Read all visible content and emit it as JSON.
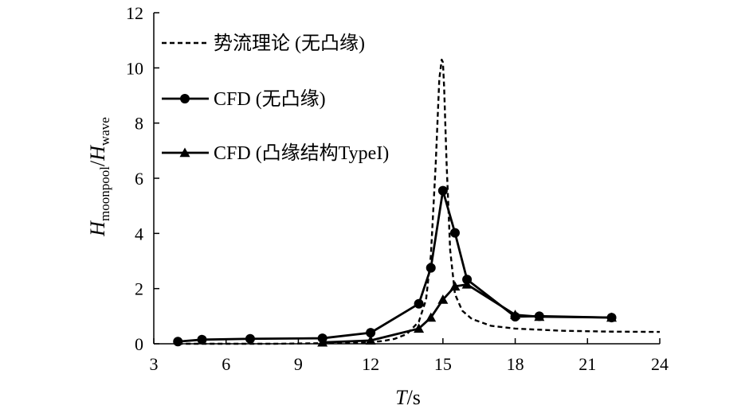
{
  "chart_data": {
    "type": "line",
    "title": "",
    "xlabel": {
      "italic": "T",
      "rest": "/s"
    },
    "ylabel": {
      "h1": "H",
      "sub1": "moonpool",
      "sep": "/",
      "h2": "H",
      "sub2": "wave"
    },
    "xlim": [
      3,
      24
    ],
    "ylim": [
      0,
      12
    ],
    "x_ticks": [
      3,
      6,
      9,
      12,
      15,
      18,
      21,
      24
    ],
    "y_ticks": [
      0,
      2,
      4,
      6,
      8,
      10,
      12
    ],
    "grid": false,
    "legend_placement": "top-left",
    "series": [
      {
        "name": "势流理论 (无凸缘)",
        "style": "dashed",
        "marker": "none",
        "color": "#000000",
        "x": [
          4,
          6,
          8,
          10,
          11,
          12,
          12.5,
          13,
          13.5,
          14,
          14.3,
          14.5,
          14.7,
          14.85,
          14.95,
          15.0,
          15.05,
          15.15,
          15.3,
          15.5,
          15.8,
          16.2,
          17,
          18,
          20,
          22,
          24
        ],
        "y": [
          0.0,
          0.0,
          0.0,
          0.02,
          0.03,
          0.06,
          0.1,
          0.18,
          0.35,
          0.8,
          1.6,
          3.2,
          6.5,
          9.6,
          10.3,
          10.2,
          9.3,
          6.6,
          3.4,
          1.8,
          1.2,
          0.9,
          0.65,
          0.55,
          0.47,
          0.44,
          0.43
        ]
      },
      {
        "name": "CFD (无凸缘)",
        "style": "solid",
        "marker": "circle",
        "color": "#000000",
        "x": [
          4,
          5,
          7,
          10,
          12,
          14,
          14.5,
          15,
          15.5,
          16,
          18,
          19,
          22
        ],
        "y": [
          0.08,
          0.15,
          0.18,
          0.2,
          0.4,
          1.45,
          2.75,
          5.55,
          4.02,
          2.33,
          0.98,
          1.0,
          0.95
        ]
      },
      {
        "name": "CFD (凸缘结构TypeI)",
        "style": "solid",
        "marker": "triangle",
        "color": "#000000",
        "x": [
          10,
          12,
          14,
          14.5,
          15,
          15.5,
          16,
          18,
          19,
          22
        ],
        "y": [
          0.05,
          0.12,
          0.55,
          0.95,
          1.6,
          2.08,
          2.15,
          1.05,
          0.98,
          0.95
        ]
      }
    ]
  }
}
